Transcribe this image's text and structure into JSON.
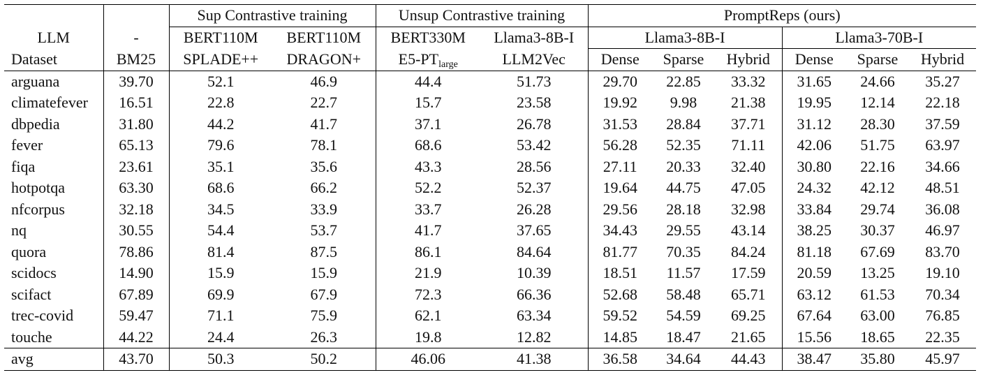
{
  "header": {
    "group_sup": "Sup Contrastive training",
    "group_unsup": "Unsup Contrastive training",
    "group_ours": "PromptReps (ours)",
    "llm_label": "LLM",
    "dataset_label": "Dataset",
    "llm_row": [
      "-",
      "BERT110M",
      "BERT110M",
      "BERT330M",
      "Llama3-8B-I",
      "Llama3-8B-I",
      "Llama3-70B-I"
    ],
    "method_row": [
      "BM25",
      "SPLADE++",
      "DRAGON+",
      "E5-PT",
      "LLM2Vec",
      "Dense",
      "Sparse",
      "Hybrid",
      "Dense",
      "Sparse",
      "Hybrid"
    ],
    "e5_subscript": "large"
  },
  "rows": [
    {
      "dataset": "arguana",
      "values": [
        "39.70",
        "52.1",
        "46.9",
        "44.4",
        "51.73",
        "29.70",
        "22.85",
        "33.32",
        "31.65",
        "24.66",
        "35.27"
      ]
    },
    {
      "dataset": "climatefever",
      "values": [
        "16.51",
        "22.8",
        "22.7",
        "15.7",
        "23.58",
        "19.92",
        "9.98",
        "21.38",
        "19.95",
        "12.14",
        "22.18"
      ]
    },
    {
      "dataset": "dbpedia",
      "values": [
        "31.80",
        "44.2",
        "41.7",
        "37.1",
        "26.78",
        "31.53",
        "28.84",
        "37.71",
        "31.12",
        "28.30",
        "37.59"
      ]
    },
    {
      "dataset": "fever",
      "values": [
        "65.13",
        "79.6",
        "78.1",
        "68.6",
        "53.42",
        "56.28",
        "52.35",
        "71.11",
        "42.06",
        "51.75",
        "63.97"
      ]
    },
    {
      "dataset": "fiqa",
      "values": [
        "23.61",
        "35.1",
        "35.6",
        "43.3",
        "28.56",
        "27.11",
        "20.33",
        "32.40",
        "30.80",
        "22.16",
        "34.66"
      ]
    },
    {
      "dataset": "hotpotqa",
      "values": [
        "63.30",
        "68.6",
        "66.2",
        "52.2",
        "52.37",
        "19.64",
        "44.75",
        "47.05",
        "24.32",
        "42.12",
        "48.51"
      ]
    },
    {
      "dataset": "nfcorpus",
      "values": [
        "32.18",
        "34.5",
        "33.9",
        "33.7",
        "26.28",
        "29.56",
        "28.18",
        "32.98",
        "33.84",
        "29.74",
        "36.08"
      ]
    },
    {
      "dataset": "nq",
      "values": [
        "30.55",
        "54.4",
        "53.7",
        "41.7",
        "37.65",
        "34.43",
        "29.55",
        "43.14",
        "38.25",
        "30.37",
        "46.97"
      ]
    },
    {
      "dataset": "quora",
      "values": [
        "78.86",
        "81.4",
        "87.5",
        "86.1",
        "84.64",
        "81.77",
        "70.35",
        "84.24",
        "81.18",
        "67.69",
        "83.70"
      ]
    },
    {
      "dataset": "scidocs",
      "values": [
        "14.90",
        "15.9",
        "15.9",
        "21.9",
        "10.39",
        "18.51",
        "11.57",
        "17.59",
        "20.59",
        "13.25",
        "19.10"
      ]
    },
    {
      "dataset": "scifact",
      "values": [
        "67.89",
        "69.9",
        "67.9",
        "72.3",
        "66.36",
        "52.68",
        "58.48",
        "65.71",
        "63.12",
        "61.53",
        "70.34"
      ]
    },
    {
      "dataset": "trec-covid",
      "values": [
        "59.47",
        "71.1",
        "75.9",
        "62.1",
        "63.34",
        "59.52",
        "54.59",
        "69.25",
        "67.64",
        "63.00",
        "76.85"
      ]
    },
    {
      "dataset": "touche",
      "values": [
        "44.22",
        "24.4",
        "26.3",
        "19.8",
        "12.82",
        "14.85",
        "18.47",
        "21.65",
        "15.56",
        "18.65",
        "22.35"
      ]
    }
  ],
  "avg": {
    "dataset": "avg",
    "values": [
      "43.70",
      "50.3",
      "50.2",
      "46.06",
      "41.38",
      "36.58",
      "34.64",
      "44.43",
      "38.47",
      "35.80",
      "45.97"
    ]
  }
}
